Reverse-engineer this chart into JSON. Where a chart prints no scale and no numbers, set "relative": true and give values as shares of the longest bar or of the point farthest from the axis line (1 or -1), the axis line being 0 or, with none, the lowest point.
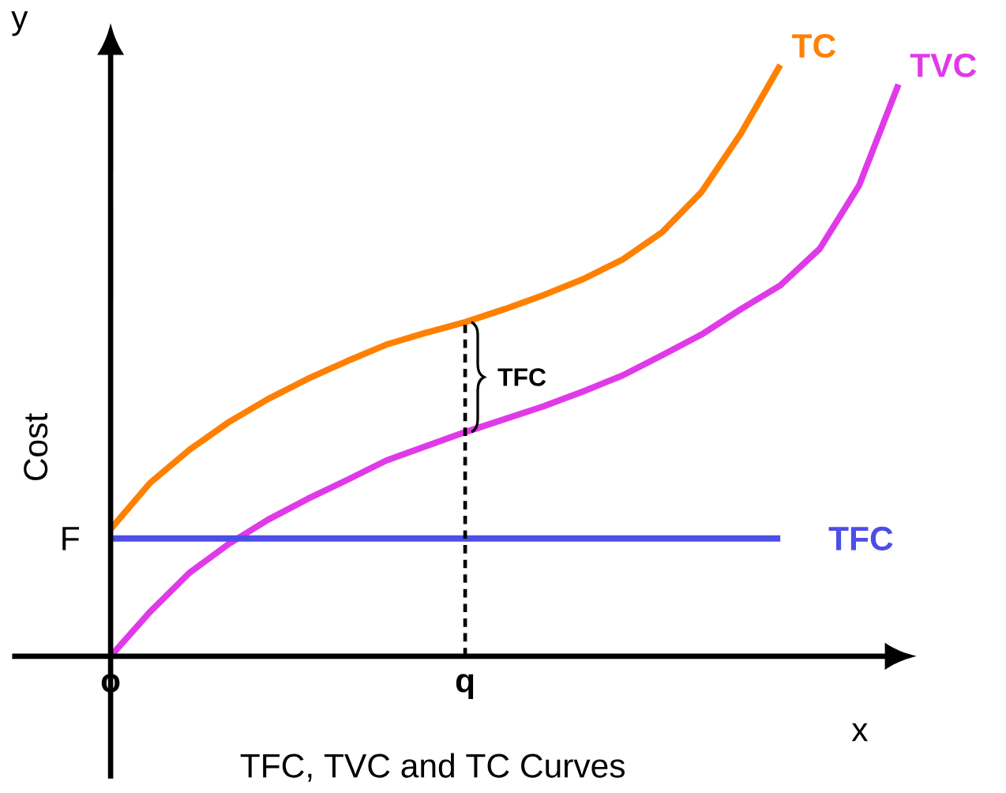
{
  "chart_data": {
    "type": "line",
    "relative": true,
    "title": "TFC, TVC and TC Curves",
    "xlabel": "x",
    "ylabel": "Cost",
    "categories": [
      "o",
      null,
      null,
      null,
      null,
      null,
      null,
      null,
      null,
      "q",
      null,
      null,
      null,
      null,
      null,
      null,
      null,
      null,
      null,
      null,
      null
    ],
    "series": [
      {
        "name": "TC",
        "color": "#ff8000",
        "values": [
          0.215,
          0.293,
          0.349,
          0.396,
          0.435,
          0.469,
          0.499,
          0.527,
          0.547,
          0.565,
          0.587,
          0.611,
          0.638,
          0.671,
          0.717,
          0.785,
          0.884,
          1,
          null,
          null,
          null
        ]
      },
      {
        "name": "TVC",
        "color": "#e03ae8",
        "values": [
          0.0,
          0.075,
          0.141,
          0.19,
          0.231,
          0.266,
          0.298,
          0.331,
          0.355,
          0.379,
          0.401,
          0.423,
          0.448,
          0.475,
          0.509,
          0.544,
          0.587,
          0.627,
          0.689,
          0.796,
          0.967
        ]
      },
      {
        "name": "TFC",
        "color": "#4d4de8",
        "values": [
          0.199,
          0.199,
          0.199,
          0.199,
          0.199,
          0.199,
          0.199,
          0.199,
          0.199,
          0.199,
          0.199,
          0.199,
          0.199,
          0.199,
          0.199,
          0.199,
          0.199,
          0.199,
          null,
          null,
          null
        ]
      }
    ],
    "ref_lines": [
      {
        "axis": "x",
        "value": "q",
        "line_style": "dashed",
        "color": "#000000"
      }
    ],
    "annotations": [
      "y",
      {
        "text": "F",
        "x": "o",
        "y": 0.199
      },
      {
        "text": "TFC",
        "x": "q",
        "y": 0.47
      }
    ]
  }
}
